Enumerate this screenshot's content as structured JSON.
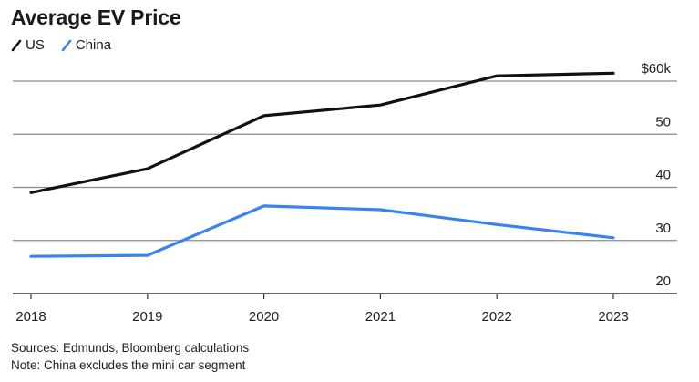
{
  "chart_data": {
    "type": "line",
    "title": "Average EV Price",
    "x": [
      "2018",
      "2019",
      "2020",
      "2021",
      "2022",
      "2023"
    ],
    "series": [
      {
        "name": "US",
        "color": "#111111",
        "values": [
          39,
          43.5,
          53.5,
          55.5,
          61,
          61.5
        ]
      },
      {
        "name": "China",
        "color": "#3b82f0",
        "values": [
          27,
          27.2,
          36.5,
          35.8,
          33,
          30.5
        ]
      }
    ],
    "y_ticks": [
      {
        "value": 60,
        "label": "$60k"
      },
      {
        "value": 50,
        "label": "50"
      },
      {
        "value": 40,
        "label": "40"
      },
      {
        "value": 30,
        "label": "30"
      },
      {
        "value": 20,
        "label": "20"
      }
    ],
    "ylim": [
      20,
      60
    ],
    "grid": true,
    "legend_position": "top-left",
    "xlabel": "",
    "ylabel": ""
  },
  "footer": {
    "sources": "Sources: Edmunds, Bloomberg calculations",
    "note": "Note: China excludes the mini car segment"
  }
}
